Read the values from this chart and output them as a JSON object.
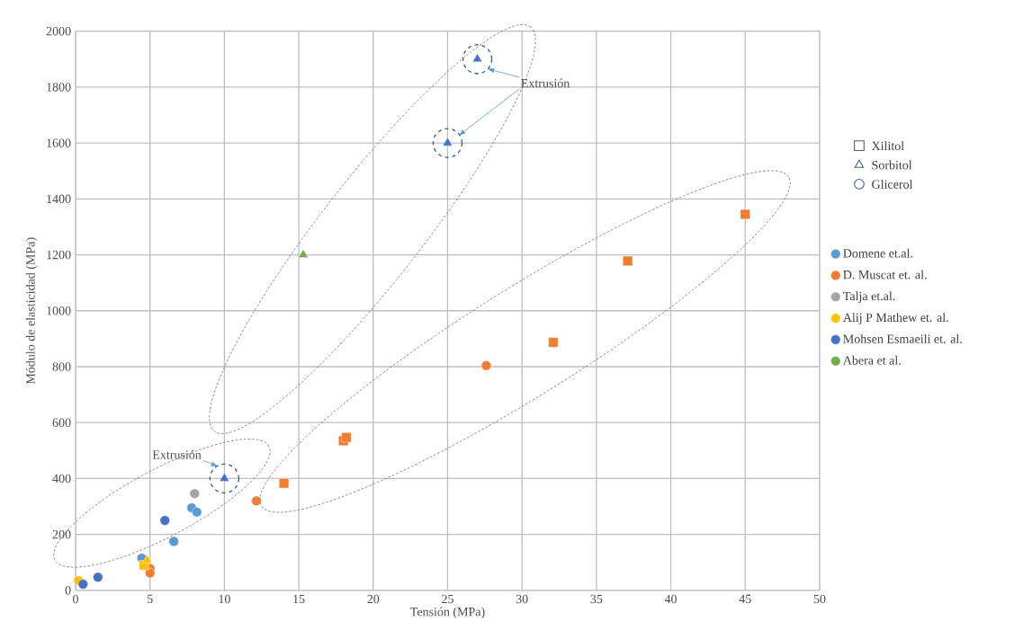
{
  "chart_data": {
    "type": "scatter",
    "xlabel": "Tensión (MPa)",
    "ylabel": "Módulo de elasticidad (MPa)",
    "xlim": [
      0,
      50
    ],
    "xticks": [
      0,
      5,
      10,
      15,
      20,
      25,
      30,
      35,
      40,
      45,
      50
    ],
    "ylim": [
      0,
      2000
    ],
    "yticks": [
      0,
      200,
      400,
      600,
      800,
      1000,
      1200,
      1400,
      1600,
      1800,
      2000
    ],
    "grid": true,
    "legend": "right",
    "series": [
      {
        "name": "Domene et.al.",
        "color": "#5b9bd5",
        "marker": "circle",
        "x": [
          4.45,
          6.6,
          7.8,
          8.15
        ],
        "values": [
          115,
          175,
          295,
          280
        ]
      },
      {
        "name": "D. Muscat et. al.",
        "color": "#ed7d31",
        "marker": "circle",
        "x": [
          5.0,
          5.0,
          12.15,
          27.6
        ],
        "values": [
          78,
          62,
          320,
          804
        ]
      },
      {
        "name": "Talja et.al.",
        "color": "#a5a5a5",
        "marker": "circle",
        "x": [
          8.0
        ],
        "values": [
          346
        ]
      },
      {
        "name": "Alij P Mathew et. al.",
        "color": "#ffc000",
        "marker": "circle",
        "x": [
          0.2
        ],
        "values": [
          35
        ]
      },
      {
        "name": "Mohsen Esmaeili et. al.",
        "color": "#4472c4",
        "marker": "circle",
        "x": [
          0.5,
          1.5,
          6.0
        ],
        "values": [
          22,
          47,
          250
        ]
      },
      {
        "name": "Abera et al.",
        "color": "#70ad47",
        "marker": "triangle",
        "x": [
          15.3
        ],
        "values": [
          1200
        ]
      },
      {
        "color": "#ed7d31",
        "marker": "square",
        "x": [
          14.0,
          18.0,
          18.2,
          32.1,
          37.1,
          45.0
        ],
        "values": [
          383,
          535,
          547,
          887,
          1178,
          1345
        ]
      },
      {
        "color": "#ffc000",
        "marker": "square",
        "x": [
          4.6
        ],
        "values": [
          90
        ]
      },
      {
        "color": "#ffc000",
        "marker": "triangle",
        "x": [
          4.8
        ],
        "values": [
          108
        ]
      },
      {
        "color": "#4472c4",
        "marker": "triangle",
        "x": [
          10.0,
          25.0,
          27.0
        ],
        "values": [
          400,
          1600,
          1900
        ]
      }
    ],
    "annotations": [
      "Xilitol",
      "Sorbitol",
      "Glicerol",
      {
        "text": "Extrusión",
        "x": 10,
        "y": 400
      },
      "Extrusión"
    ]
  }
}
